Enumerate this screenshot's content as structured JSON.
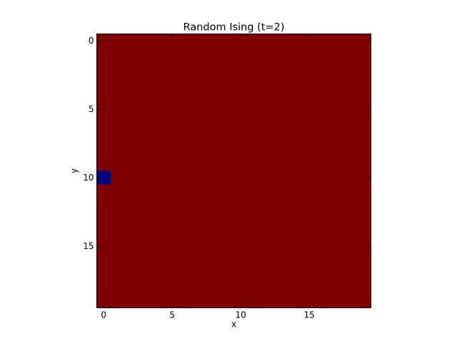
{
  "chart_data": {
    "type": "heatmap",
    "title": "Random Ising (t=2)",
    "xlabel": "x",
    "ylabel": "y",
    "grid_size": [
      20,
      20
    ],
    "xlim": [
      -0.5,
      19.5
    ],
    "ylim": [
      19.5,
      -0.5
    ],
    "x_ticks": [
      0,
      5,
      10,
      15
    ],
    "y_ticks": [
      0,
      5,
      10,
      15
    ],
    "grid": false,
    "values_description_colors": {
      "up": "#7f0000",
      "down": "#00007f"
    },
    "default_value": 1,
    "cells": [
      {
        "x": 0,
        "y": 10,
        "value": -1
      }
    ]
  }
}
